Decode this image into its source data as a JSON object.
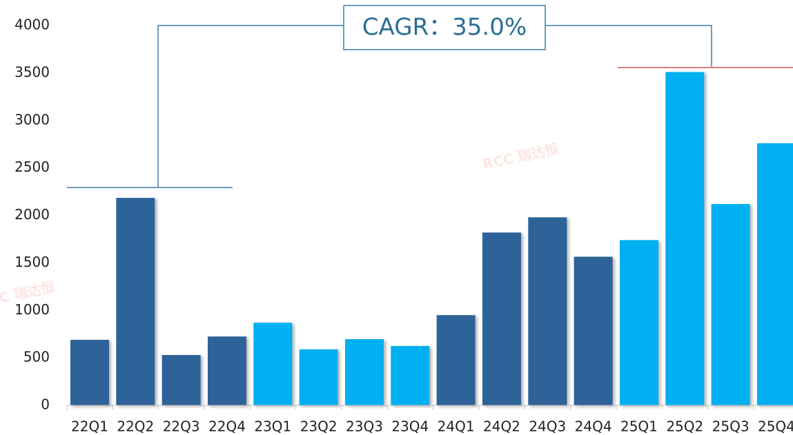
{
  "chart_data": {
    "type": "bar",
    "annotation": "CAGR：35.0%",
    "watermark": "RCC 瑞达恒",
    "categories": [
      "22Q1",
      "22Q2",
      "22Q3",
      "22Q4",
      "23Q1",
      "23Q2",
      "23Q3",
      "23Q4",
      "24Q1",
      "24Q2",
      "24Q3",
      "24Q4",
      "25Q1",
      "25Q2",
      "25Q3",
      "25Q4"
    ],
    "values": [
      690,
      2185,
      530,
      725,
      870,
      590,
      697,
      625,
      950,
      1820,
      1980,
      1565,
      1740,
      3510,
      2120,
      2760
    ],
    "colors": [
      "#2e6399",
      "#2e6399",
      "#2e6399",
      "#2e6399",
      "#00b0f0",
      "#00b0f0",
      "#00b0f0",
      "#00b0f0",
      "#2e6399",
      "#2e6399",
      "#2e6399",
      "#2e6399",
      "#00b0f0",
      "#00b0f0",
      "#00b0f0",
      "#00b0f0"
    ],
    "ylim": [
      0,
      4000
    ],
    "yticks": [
      0,
      500,
      1000,
      1500,
      2000,
      2500,
      3000,
      3500,
      4000
    ],
    "grid": false
  }
}
